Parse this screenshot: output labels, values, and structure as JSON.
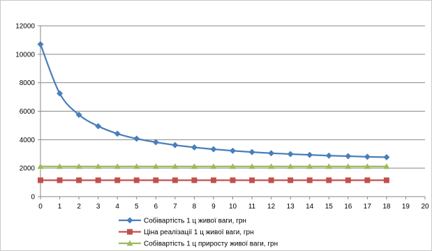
{
  "chart_data": {
    "type": "line",
    "title": "",
    "xlabel": "",
    "ylabel": "",
    "x_ticks": [
      0,
      1,
      2,
      3,
      4,
      5,
      6,
      7,
      8,
      9,
      10,
      11,
      12,
      13,
      14,
      15,
      16,
      17,
      18,
      19,
      20
    ],
    "xlim": [
      0,
      20
    ],
    "y_ticks": [
      0,
      2000,
      4000,
      6000,
      8000,
      10000,
      12000
    ],
    "ylim": [
      0,
      12000
    ],
    "grid": "horizontal",
    "legend_position": "bottom",
    "series": [
      {
        "name": "Собівартість 1 ц живої ваги, грн",
        "color": "#4a7ebb",
        "marker": "diamond",
        "x": [
          0,
          1,
          2,
          3,
          4,
          5,
          6,
          7,
          8,
          9,
          10,
          11,
          12,
          13,
          14,
          15,
          16,
          17,
          18
        ],
        "values": [
          10700,
          7250,
          5750,
          4950,
          4420,
          4070,
          3820,
          3620,
          3460,
          3330,
          3220,
          3130,
          3050,
          2990,
          2930,
          2880,
          2840,
          2800,
          2770
        ]
      },
      {
        "name": "Ціна реалізації 1 ц живої ваги, грн",
        "color": "#c0504d",
        "marker": "square",
        "x": [
          0,
          1,
          2,
          3,
          4,
          5,
          6,
          7,
          8,
          9,
          10,
          11,
          12,
          13,
          14,
          15,
          16,
          17,
          18
        ],
        "values": [
          1150,
          1150,
          1150,
          1150,
          1150,
          1150,
          1150,
          1150,
          1150,
          1150,
          1150,
          1150,
          1150,
          1150,
          1150,
          1150,
          1150,
          1150,
          1150
        ]
      },
      {
        "name": "Собівартість 1 ц приросту живої ваги, грн",
        "color": "#9bbb59",
        "marker": "triangle",
        "x": [
          0,
          1,
          2,
          3,
          4,
          5,
          6,
          7,
          8,
          9,
          10,
          11,
          12,
          13,
          14,
          15,
          16,
          17,
          18
        ],
        "values": [
          2120,
          2120,
          2120,
          2120,
          2120,
          2120,
          2120,
          2120,
          2120,
          2120,
          2120,
          2120,
          2120,
          2120,
          2120,
          2120,
          2120,
          2120,
          2120
        ]
      }
    ]
  }
}
